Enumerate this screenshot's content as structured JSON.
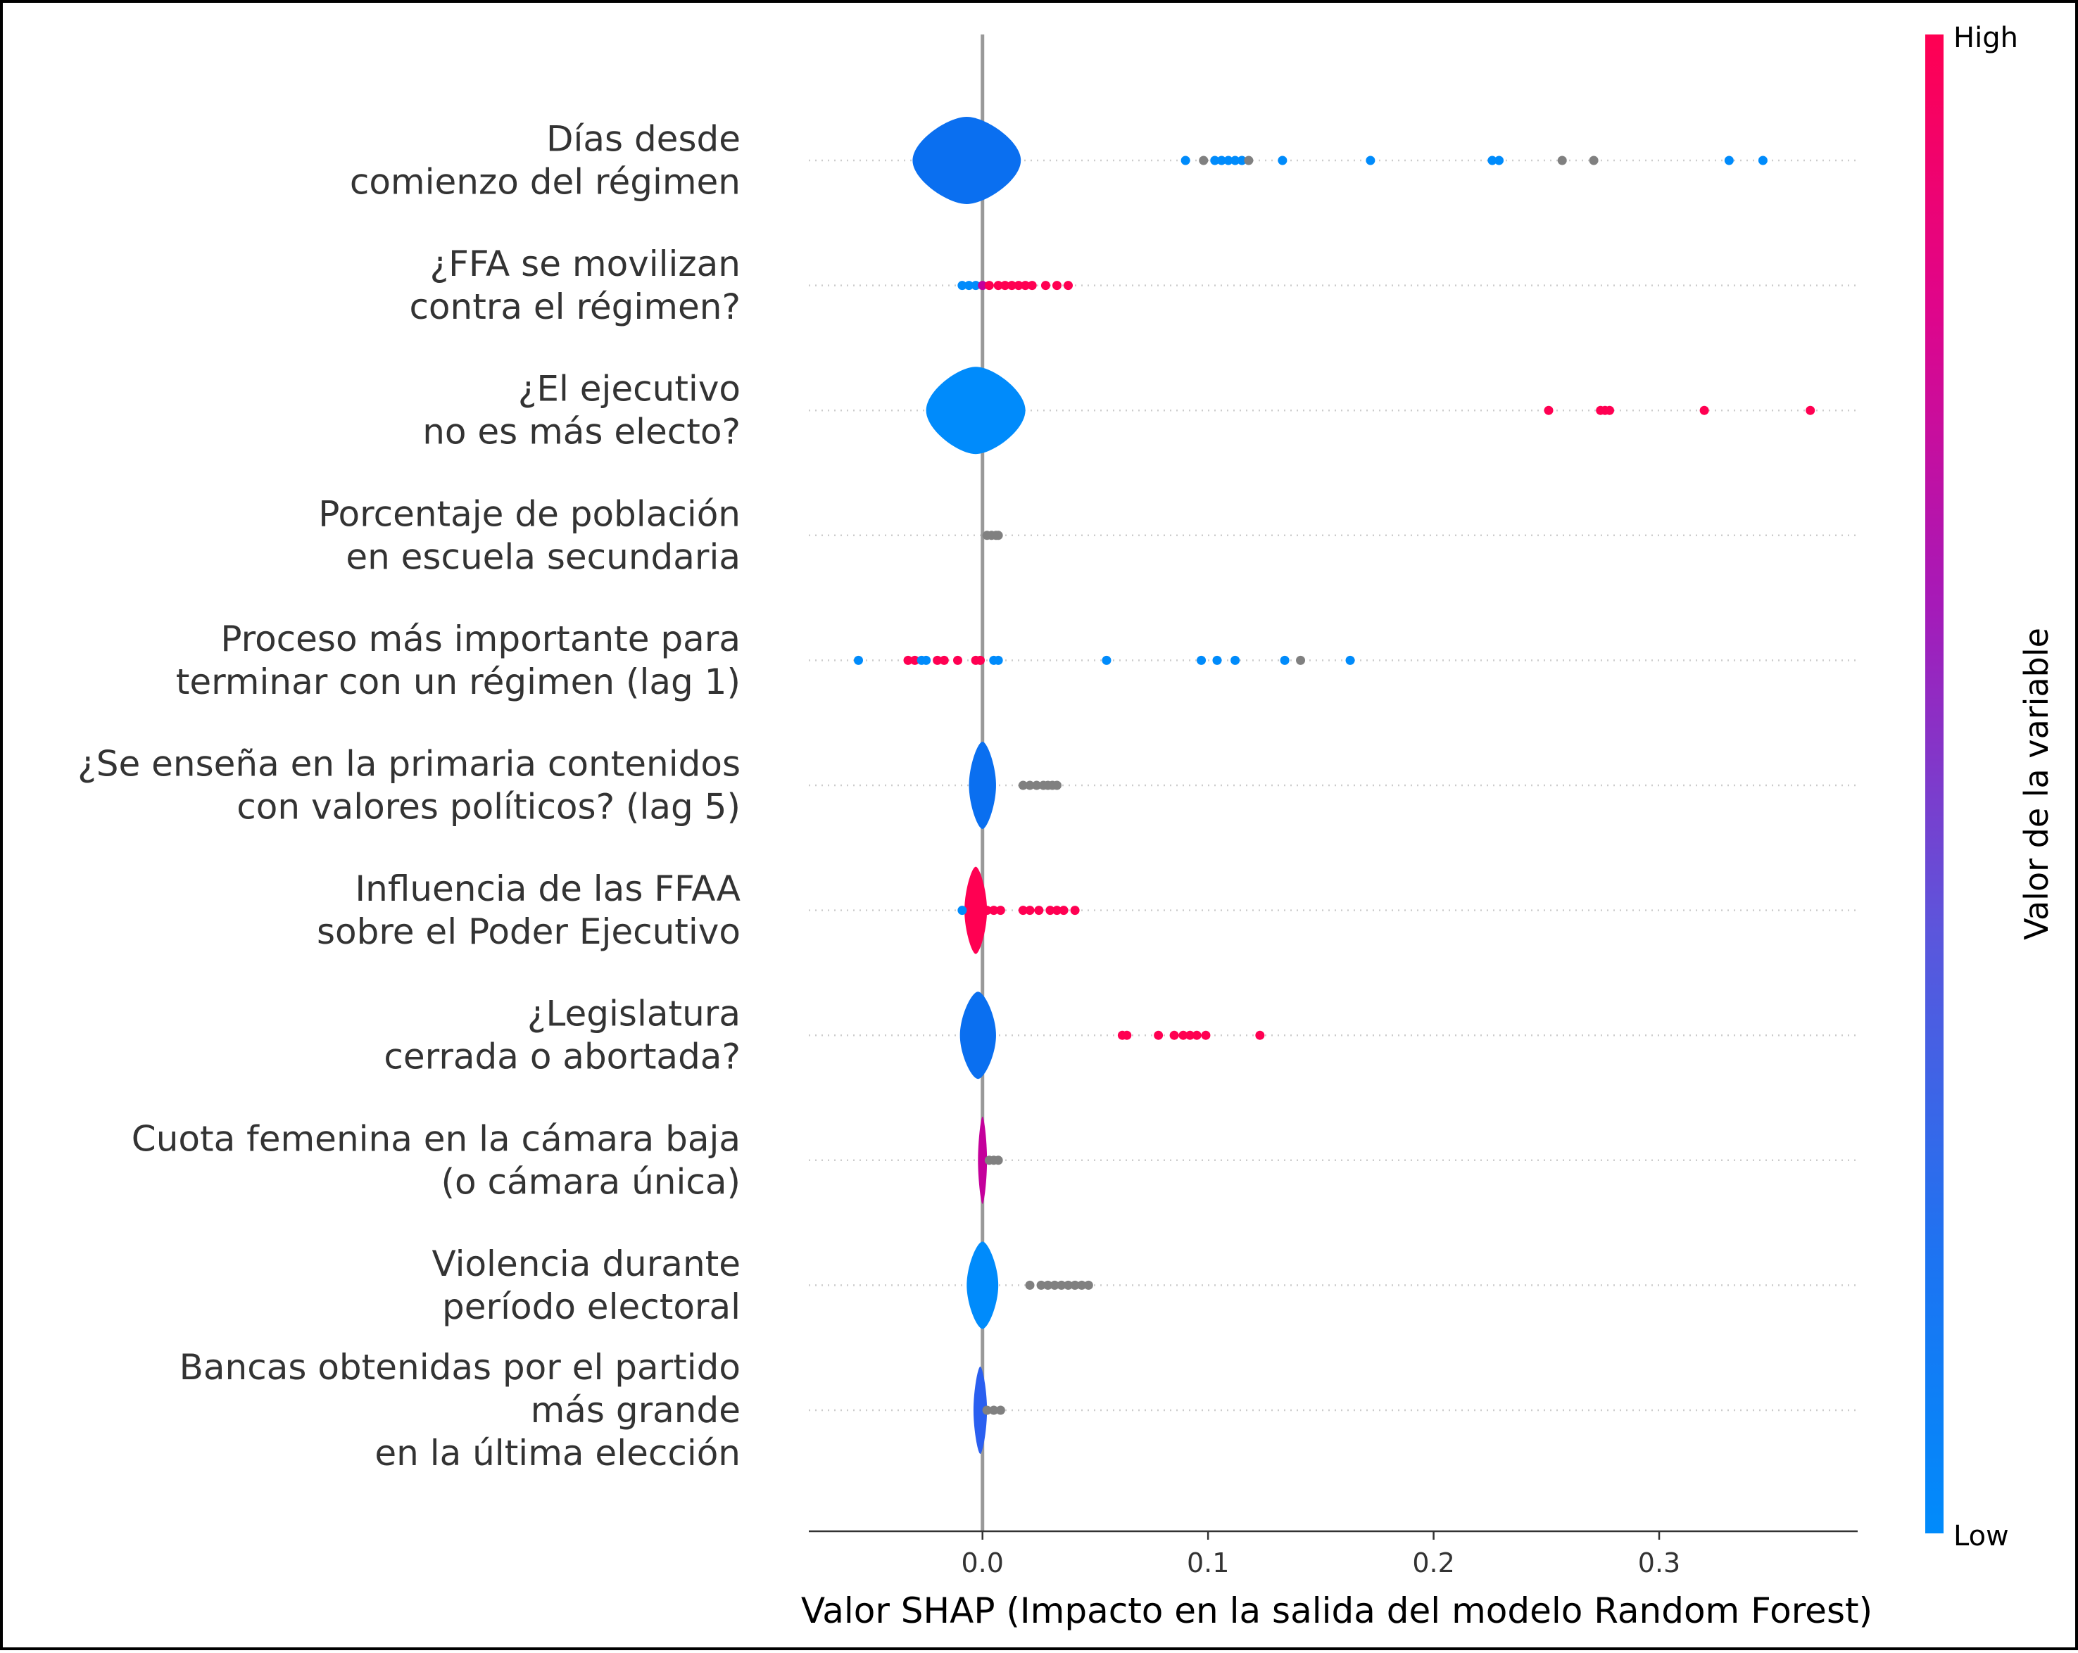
{
  "chart_data": {
    "type": "scatter",
    "subtype": "shap-violin-summary",
    "xlabel": "Valor SHAP (Impacto en la salida del modelo Random Forest)",
    "xlim": [
      -0.077,
      0.388
    ],
    "x_ticks": [
      0.0,
      0.1,
      0.2,
      0.3
    ],
    "x_tick_labels": [
      "0.0",
      "0.1",
      "0.2",
      "0.3"
    ],
    "zero_line": 0.0,
    "grid": false,
    "colorbar": {
      "title": "Valor de la variable",
      "high_label": "High",
      "low_label": "Low",
      "high_color": "#ff0052",
      "low_color": "#008bfb",
      "missing_color": "#808080"
    },
    "features": [
      {
        "label_lines": [
          "Días desde",
          "comienzo del régimen"
        ],
        "violin": {
          "center": -0.007,
          "half_width": 0.024,
          "color": "#0a6ff0"
        },
        "points": [
          {
            "x": 0.09,
            "c": "low"
          },
          {
            "x": 0.098,
            "c": "nan"
          },
          {
            "x": 0.103,
            "c": "low"
          },
          {
            "x": 0.106,
            "c": "low"
          },
          {
            "x": 0.109,
            "c": "low"
          },
          {
            "x": 0.112,
            "c": "low"
          },
          {
            "x": 0.115,
            "c": "low"
          },
          {
            "x": 0.118,
            "c": "nan"
          },
          {
            "x": 0.133,
            "c": "low"
          },
          {
            "x": 0.172,
            "c": "low"
          },
          {
            "x": 0.226,
            "c": "low"
          },
          {
            "x": 0.229,
            "c": "low"
          },
          {
            "x": 0.257,
            "c": "nan"
          },
          {
            "x": 0.271,
            "c": "nan"
          },
          {
            "x": 0.331,
            "c": "low"
          },
          {
            "x": 0.346,
            "c": "low"
          }
        ]
      },
      {
        "label_lines": [
          "¿FFA se movilizan",
          "contra el régimen?"
        ],
        "violin": null,
        "points": [
          {
            "x": -0.009,
            "c": "low"
          },
          {
            "x": -0.006,
            "c": "low"
          },
          {
            "x": -0.003,
            "c": "low"
          },
          {
            "x": 0.0,
            "c": "mid"
          },
          {
            "x": 0.003,
            "c": "high"
          },
          {
            "x": 0.007,
            "c": "high"
          },
          {
            "x": 0.01,
            "c": "high"
          },
          {
            "x": 0.013,
            "c": "high"
          },
          {
            "x": 0.016,
            "c": "high"
          },
          {
            "x": 0.019,
            "c": "high"
          },
          {
            "x": 0.022,
            "c": "high"
          },
          {
            "x": 0.028,
            "c": "high"
          },
          {
            "x": 0.033,
            "c": "high"
          },
          {
            "x": 0.038,
            "c": "high"
          }
        ]
      },
      {
        "label_lines": [
          "¿El ejecutivo",
          "no es más electo?"
        ],
        "violin": {
          "center": -0.003,
          "half_width": 0.022,
          "color": "#008bfb"
        },
        "points": [
          {
            "x": 0.251,
            "c": "high"
          },
          {
            "x": 0.274,
            "c": "high"
          },
          {
            "x": 0.276,
            "c": "high"
          },
          {
            "x": 0.278,
            "c": "high"
          },
          {
            "x": 0.32,
            "c": "high"
          },
          {
            "x": 0.367,
            "c": "high"
          }
        ]
      },
      {
        "label_lines": [
          "Porcentaje de población",
          "en escuela secundaria"
        ],
        "violin": null,
        "points": [
          {
            "x": 0.002,
            "c": "nan"
          },
          {
            "x": 0.004,
            "c": "nan"
          },
          {
            "x": 0.006,
            "c": "nan"
          },
          {
            "x": 0.007,
            "c": "nan"
          }
        ]
      },
      {
        "label_lines": [
          "Proceso más importante para",
          "terminar con un régimen (lag 1)"
        ],
        "violin": null,
        "points": [
          {
            "x": -0.055,
            "c": "low"
          },
          {
            "x": -0.033,
            "c": "high"
          },
          {
            "x": -0.03,
            "c": "high"
          },
          {
            "x": -0.027,
            "c": "low"
          },
          {
            "x": -0.025,
            "c": "low"
          },
          {
            "x": -0.02,
            "c": "high"
          },
          {
            "x": -0.017,
            "c": "high"
          },
          {
            "x": -0.011,
            "c": "high"
          },
          {
            "x": -0.003,
            "c": "high"
          },
          {
            "x": -0.001,
            "c": "high"
          },
          {
            "x": 0.005,
            "c": "low"
          },
          {
            "x": 0.007,
            "c": "low"
          },
          {
            "x": 0.055,
            "c": "low"
          },
          {
            "x": 0.097,
            "c": "low"
          },
          {
            "x": 0.104,
            "c": "low"
          },
          {
            "x": 0.112,
            "c": "low"
          },
          {
            "x": 0.134,
            "c": "low"
          },
          {
            "x": 0.141,
            "c": "nan"
          },
          {
            "x": 0.163,
            "c": "low"
          }
        ]
      },
      {
        "label_lines": [
          "¿Se enseña en la primaria contenidos",
          "con valores políticos? (lag 5)"
        ],
        "violin": {
          "center": 0.0,
          "half_width": 0.006,
          "color": "#0a6ff0"
        },
        "points": [
          {
            "x": 0.018,
            "c": "nan"
          },
          {
            "x": 0.021,
            "c": "nan"
          },
          {
            "x": 0.024,
            "c": "nan"
          },
          {
            "x": 0.027,
            "c": "nan"
          },
          {
            "x": 0.029,
            "c": "nan"
          },
          {
            "x": 0.031,
            "c": "nan"
          },
          {
            "x": 0.033,
            "c": "nan"
          }
        ]
      },
      {
        "label_lines": [
          "Influencia de las FFAA",
          "sobre el Poder Ejecutivo"
        ],
        "violin": {
          "center": -0.003,
          "half_width": 0.005,
          "color": "#ff0052"
        },
        "points": [
          {
            "x": -0.009,
            "c": "low"
          },
          {
            "x": 0.002,
            "c": "high"
          },
          {
            "x": 0.005,
            "c": "high"
          },
          {
            "x": 0.008,
            "c": "high"
          },
          {
            "x": 0.018,
            "c": "high"
          },
          {
            "x": 0.021,
            "c": "high"
          },
          {
            "x": 0.025,
            "c": "high"
          },
          {
            "x": 0.03,
            "c": "high"
          },
          {
            "x": 0.033,
            "c": "high"
          },
          {
            "x": 0.036,
            "c": "high"
          },
          {
            "x": 0.041,
            "c": "high"
          }
        ]
      },
      {
        "label_lines": [
          "¿Legislatura",
          "cerrada o abortada?"
        ],
        "violin": {
          "center": -0.002,
          "half_width": 0.008,
          "color": "#0a6ff0"
        },
        "points": [
          {
            "x": 0.062,
            "c": "high"
          },
          {
            "x": 0.064,
            "c": "high"
          },
          {
            "x": 0.078,
            "c": "high"
          },
          {
            "x": 0.085,
            "c": "high"
          },
          {
            "x": 0.089,
            "c": "high"
          },
          {
            "x": 0.092,
            "c": "high"
          },
          {
            "x": 0.095,
            "c": "high"
          },
          {
            "x": 0.099,
            "c": "high"
          },
          {
            "x": 0.123,
            "c": "high"
          }
        ]
      },
      {
        "label_lines": [
          "Cuota femenina en la cámara baja",
          "(o cámara única)"
        ],
        "violin": {
          "center": 0.0,
          "half_width": 0.002,
          "color": "#c4009b"
        },
        "points": [
          {
            "x": 0.003,
            "c": "nan"
          },
          {
            "x": 0.005,
            "c": "nan"
          },
          {
            "x": 0.007,
            "c": "nan"
          }
        ]
      },
      {
        "label_lines": [
          "Violencia durante",
          "período electoral"
        ],
        "violin": {
          "center": 0.0,
          "half_width": 0.007,
          "color": "#008bfb"
        },
        "points": [
          {
            "x": 0.021,
            "c": "nan"
          },
          {
            "x": 0.026,
            "c": "nan"
          },
          {
            "x": 0.029,
            "c": "nan"
          },
          {
            "x": 0.032,
            "c": "nan"
          },
          {
            "x": 0.035,
            "c": "nan"
          },
          {
            "x": 0.038,
            "c": "nan"
          },
          {
            "x": 0.041,
            "c": "nan"
          },
          {
            "x": 0.044,
            "c": "nan"
          },
          {
            "x": 0.047,
            "c": "nan"
          }
        ]
      },
      {
        "label_lines": [
          "Bancas obtenidas por el partido",
          "más grande",
          "en la última elección"
        ],
        "violin": {
          "center": -0.001,
          "half_width": 0.003,
          "color": "#2a5ff0"
        },
        "points": [
          {
            "x": 0.002,
            "c": "nan"
          },
          {
            "x": 0.005,
            "c": "nan"
          },
          {
            "x": 0.008,
            "c": "nan"
          }
        ]
      }
    ]
  }
}
